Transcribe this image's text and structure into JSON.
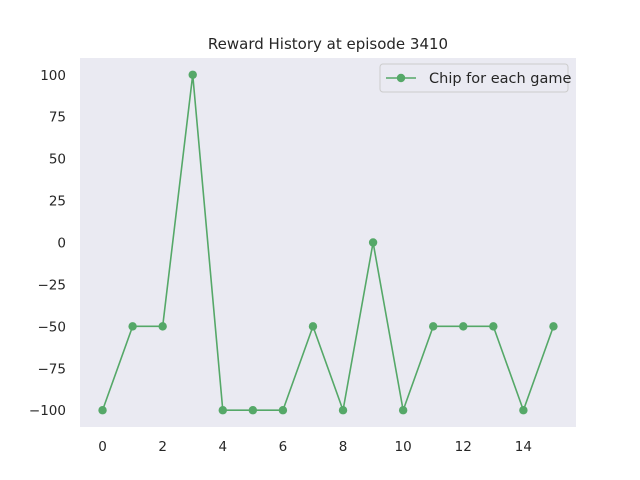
{
  "chart_data": {
    "type": "line",
    "title": "Reward History at episode 3410",
    "xlabel": "",
    "ylabel": "",
    "x": [
      0,
      1,
      2,
      3,
      4,
      5,
      6,
      7,
      8,
      9,
      10,
      11,
      12,
      13,
      14,
      15
    ],
    "series": [
      {
        "name": "Chip for each game",
        "values": [
          -100,
          -50,
          -50,
          100,
          -100,
          -100,
          -100,
          -50,
          -100,
          0,
          -100,
          -50,
          -50,
          -50,
          -100,
          -50
        ],
        "color": "#55a868",
        "marker": "circle"
      }
    ],
    "xticks": [
      0,
      2,
      4,
      6,
      8,
      10,
      12,
      14
    ],
    "xtick_labels": [
      "0",
      "2",
      "4",
      "6",
      "8",
      "10",
      "12",
      "14"
    ],
    "yticks": [
      -100,
      -75,
      -50,
      -25,
      0,
      25,
      50,
      75,
      100
    ],
    "ytick_labels": [
      "−100",
      "−75",
      "−50",
      "−25",
      "0",
      "25",
      "50",
      "75",
      "100"
    ],
    "xlim": [
      -0.75,
      15.75
    ],
    "ylim": [
      -110,
      110
    ],
    "grid": false,
    "legend_position": "top-right",
    "background": "#eaeaf2"
  }
}
